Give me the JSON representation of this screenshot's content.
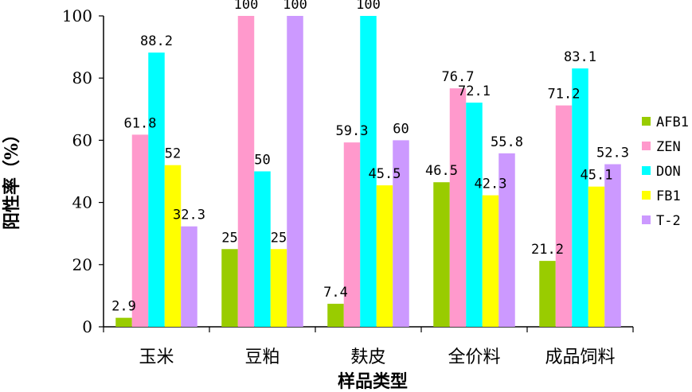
{
  "chart_data": {
    "type": "bar",
    "title": "",
    "xlabel": "样品类型",
    "ylabel": "阳性率（%）",
    "ylim": [
      0,
      100
    ],
    "yticks": [
      0,
      20,
      40,
      60,
      80,
      100
    ],
    "categories": [
      "玉米",
      "豆粕",
      "麸皮",
      "全价料",
      "成品饲料"
    ],
    "series": [
      {
        "name": "AFB1",
        "color": "#99cc00",
        "values": [
          2.9,
          25,
          7.4,
          46.5,
          21.2
        ],
        "labels": [
          "2.9",
          "25",
          "7.4",
          "46.5",
          "21.2"
        ]
      },
      {
        "name": "ZEN",
        "color": "#ff99cc",
        "values": [
          61.8,
          100,
          59.3,
          76.7,
          71.2
        ],
        "labels": [
          "61.8",
          "100",
          "59.3",
          "76.7",
          "71.2"
        ]
      },
      {
        "name": "DON",
        "color": "#00ffff",
        "values": [
          88.2,
          50,
          100,
          72.1,
          83.1
        ],
        "labels": [
          "88.2",
          "50",
          "100",
          "72.1",
          "83.1"
        ]
      },
      {
        "name": "FB1",
        "color": "#ffff00",
        "values": [
          52,
          25,
          45.5,
          42.3,
          45.1
        ],
        "labels": [
          "52",
          "25",
          "45.5",
          "42.3",
          "45.1"
        ]
      },
      {
        "name": "T-2",
        "color": "#cc99ff",
        "values": [
          32.3,
          100,
          60,
          55.8,
          52.3
        ],
        "labels": [
          "32.3",
          "100",
          "60",
          "55.8",
          "52.3"
        ]
      }
    ],
    "legend_position": "right",
    "grid": false
  }
}
